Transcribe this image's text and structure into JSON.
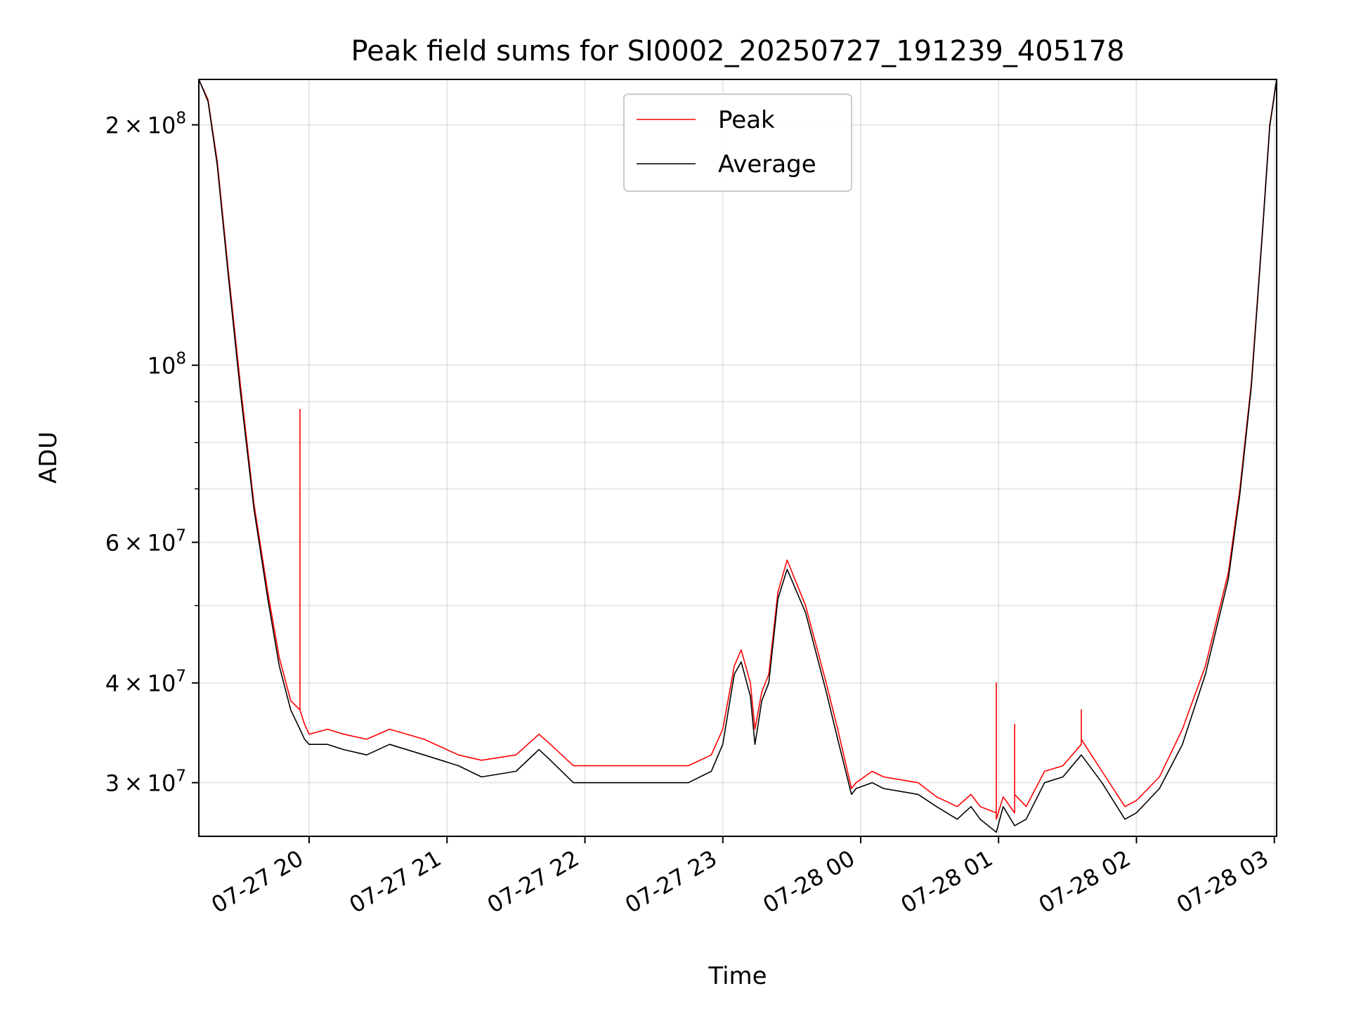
{
  "chart_data": {
    "type": "line",
    "title": "Peak field sums for SI0002_20250727_191239_405178",
    "xlabel": "Time",
    "ylabel": "ADU",
    "y_scale": "log",
    "ylim": [
      25700000,
      228000000
    ],
    "xlim": [
      "2025-07-27 19:12",
      "2025-07-28 03:01"
    ],
    "grid": true,
    "legend_position": "top-center",
    "x_ticks": [
      {
        "time": "2025-07-27 20:00",
        "label": "07-27 20"
      },
      {
        "time": "2025-07-27 21:00",
        "label": "07-27 21"
      },
      {
        "time": "2025-07-27 22:00",
        "label": "07-27 22"
      },
      {
        "time": "2025-07-27 23:00",
        "label": "07-27 23"
      },
      {
        "time": "2025-07-28 00:00",
        "label": "07-28 00"
      },
      {
        "time": "2025-07-28 01:00",
        "label": "07-28 01"
      },
      {
        "time": "2025-07-28 02:00",
        "label": "07-28 02"
      },
      {
        "time": "2025-07-28 03:00",
        "label": "07-28 03"
      }
    ],
    "y_ticks_major": [
      {
        "value": 200000000,
        "mantissa": "2",
        "exponent": "8"
      },
      {
        "value": 100000000,
        "mantissa": "",
        "exponent": "8"
      },
      {
        "value": 60000000,
        "mantissa": "6",
        "exponent": "7"
      },
      {
        "value": 40000000,
        "mantissa": "4",
        "exponent": "7"
      },
      {
        "value": 30000000,
        "mantissa": "3",
        "exponent": "7"
      }
    ],
    "y_ticks_minor": [
      90000000,
      80000000,
      70000000,
      50000000
    ],
    "series": [
      {
        "name": "Peak",
        "color": "#ff0000",
        "x": [
          "2025-07-27 19:12",
          "2025-07-27 19:16",
          "2025-07-27 19:20",
          "2025-07-27 19:25",
          "2025-07-27 19:30",
          "2025-07-27 19:36",
          "2025-07-27 19:42",
          "2025-07-27 19:47",
          "2025-07-27 19:52",
          "2025-07-27 19:56",
          "2025-07-27 19:56",
          "2025-07-27 19:56",
          "2025-07-27 19:58",
          "2025-07-27 20:00",
          "2025-07-27 20:08",
          "2025-07-27 20:15",
          "2025-07-27 20:25",
          "2025-07-27 20:35",
          "2025-07-27 20:50",
          "2025-07-27 21:05",
          "2025-07-27 21:15",
          "2025-07-27 21:30",
          "2025-07-27 21:40",
          "2025-07-27 21:45",
          "2025-07-27 21:55",
          "2025-07-27 22:10",
          "2025-07-27 22:25",
          "2025-07-27 22:45",
          "2025-07-27 22:55",
          "2025-07-27 23:00",
          "2025-07-27 23:05",
          "2025-07-27 23:08",
          "2025-07-27 23:12",
          "2025-07-27 23:14",
          "2025-07-27 23:17",
          "2025-07-27 23:20",
          "2025-07-27 23:24",
          "2025-07-27 23:28",
          "2025-07-27 23:36",
          "2025-07-27 23:45",
          "2025-07-27 23:50",
          "2025-07-27 23:56",
          "2025-07-27 23:58",
          "2025-07-28 00:05",
          "2025-07-28 00:10",
          "2025-07-28 00:25",
          "2025-07-28 00:33",
          "2025-07-28 00:42",
          "2025-07-28 00:48",
          "2025-07-28 00:52",
          "2025-07-28 00:59",
          "2025-07-28 00:59",
          "2025-07-28 00:59",
          "2025-07-28 01:02",
          "2025-07-28 01:07",
          "2025-07-28 01:07",
          "2025-07-28 01:07",
          "2025-07-28 01:12",
          "2025-07-28 01:20",
          "2025-07-28 01:28",
          "2025-07-28 01:36",
          "2025-07-28 01:36",
          "2025-07-28 01:36",
          "2025-07-28 01:45",
          "2025-07-28 01:55",
          "2025-07-28 02:00",
          "2025-07-28 02:10",
          "2025-07-28 02:20",
          "2025-07-28 02:30",
          "2025-07-28 02:40",
          "2025-07-28 02:45",
          "2025-07-28 02:50",
          "2025-07-28 02:55",
          "2025-07-28 02:58",
          "2025-07-28 03:01"
        ],
        "y": [
          228000000,
          215000000,
          180000000,
          130000000,
          95000000,
          67000000,
          52000000,
          43000000,
          38000000,
          37000000,
          88000000,
          37000000,
          35500000,
          34500000,
          35000000,
          34500000,
          34000000,
          35000000,
          34000000,
          32500000,
          32000000,
          32500000,
          34500000,
          33500000,
          31500000,
          31500000,
          31500000,
          31500000,
          32500000,
          35000000,
          42000000,
          44000000,
          40000000,
          35000000,
          39000000,
          41000000,
          52000000,
          57000000,
          50000000,
          40000000,
          35000000,
          29500000,
          30000000,
          31000000,
          30500000,
          30000000,
          28800000,
          28000000,
          29000000,
          28000000,
          27500000,
          40000000,
          27000000,
          28800000,
          27500000,
          35500000,
          29000000,
          28000000,
          31000000,
          31500000,
          33500000,
          37000000,
          34000000,
          31000000,
          28000000,
          28500000,
          30500000,
          35000000,
          42000000,
          55000000,
          70000000,
          95000000,
          150000000,
          200000000,
          228000000
        ]
      },
      {
        "name": "Average",
        "color": "#000000",
        "x": [
          "2025-07-27 19:12",
          "2025-07-27 19:16",
          "2025-07-27 19:20",
          "2025-07-27 19:25",
          "2025-07-27 19:30",
          "2025-07-27 19:36",
          "2025-07-27 19:42",
          "2025-07-27 19:47",
          "2025-07-27 19:52",
          "2025-07-27 19:56",
          "2025-07-27 19:58",
          "2025-07-27 20:00",
          "2025-07-27 20:08",
          "2025-07-27 20:15",
          "2025-07-27 20:25",
          "2025-07-27 20:35",
          "2025-07-27 20:50",
          "2025-07-27 21:05",
          "2025-07-27 21:15",
          "2025-07-27 21:30",
          "2025-07-27 21:40",
          "2025-07-27 21:45",
          "2025-07-27 21:55",
          "2025-07-27 22:10",
          "2025-07-27 22:25",
          "2025-07-27 22:45",
          "2025-07-27 22:55",
          "2025-07-27 23:00",
          "2025-07-27 23:05",
          "2025-07-27 23:08",
          "2025-07-27 23:12",
          "2025-07-27 23:14",
          "2025-07-27 23:17",
          "2025-07-27 23:20",
          "2025-07-27 23:24",
          "2025-07-27 23:28",
          "2025-07-27 23:36",
          "2025-07-27 23:45",
          "2025-07-27 23:50",
          "2025-07-27 23:56",
          "2025-07-27 23:58",
          "2025-07-28 00:05",
          "2025-07-28 00:10",
          "2025-07-28 00:25",
          "2025-07-28 00:33",
          "2025-07-28 00:42",
          "2025-07-28 00:48",
          "2025-07-28 00:52",
          "2025-07-28 00:59",
          "2025-07-28 01:02",
          "2025-07-28 01:07",
          "2025-07-28 01:12",
          "2025-07-28 01:20",
          "2025-07-28 01:28",
          "2025-07-28 01:36",
          "2025-07-28 01:45",
          "2025-07-28 01:55",
          "2025-07-28 02:00",
          "2025-07-28 02:10",
          "2025-07-28 02:20",
          "2025-07-28 02:30",
          "2025-07-28 02:40",
          "2025-07-28 02:45",
          "2025-07-28 02:50",
          "2025-07-28 02:55",
          "2025-07-28 02:58",
          "2025-07-28 03:01"
        ],
        "y": [
          228000000,
          214000000,
          178000000,
          128000000,
          93000000,
          66000000,
          51000000,
          42000000,
          37000000,
          35000000,
          34000000,
          33500000,
          33500000,
          33000000,
          32500000,
          33500000,
          32500000,
          31500000,
          30500000,
          31000000,
          33000000,
          32000000,
          30000000,
          30000000,
          30000000,
          30000000,
          31000000,
          33500000,
          41000000,
          42500000,
          38500000,
          33500000,
          38000000,
          40000000,
          51000000,
          55500000,
          49000000,
          39000000,
          34000000,
          29000000,
          29500000,
          30000000,
          29500000,
          29000000,
          28000000,
          27000000,
          28000000,
          27000000,
          26000000,
          28000000,
          26500000,
          27000000,
          30000000,
          30500000,
          32500000,
          30000000,
          27000000,
          27500000,
          29500000,
          33500000,
          41000000,
          54000000,
          69000000,
          94000000,
          149000000,
          199000000,
          228000000
        ]
      }
    ]
  }
}
